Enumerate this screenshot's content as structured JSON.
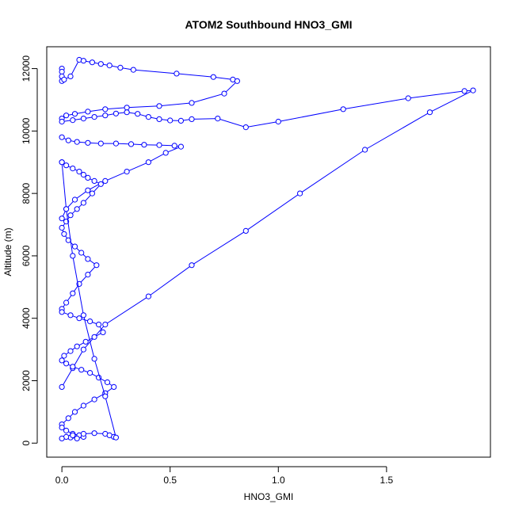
{
  "chart_data": {
    "type": "line",
    "title": "ATOM2 Southbound HNO3_GMI",
    "xlabel": "HNO3_GMI",
    "ylabel": "Altitude (m)",
    "xlim": [
      -0.07,
      1.98
    ],
    "ylim": [
      -450,
      12700
    ],
    "x_ticks": [
      "0.0",
      "0.5",
      "1.0",
      "1.5"
    ],
    "x_tick_values": [
      0,
      0.5,
      1.0,
      1.5
    ],
    "y_ticks": [
      "0",
      "2000",
      "4000",
      "6000",
      "8000",
      "10000",
      "12000"
    ],
    "y_tick_values": [
      0,
      2000,
      4000,
      6000,
      8000,
      10000,
      12000
    ],
    "grid": false,
    "legend": "none",
    "color": "#0000ff",
    "marker": "open-circle",
    "series": [
      {
        "x": [
          0.0,
          0.0,
          0.0,
          0.0,
          0.01,
          0.04,
          0.08,
          0.1,
          0.14,
          0.18,
          0.22,
          0.27,
          0.33,
          0.53,
          0.7,
          0.79,
          0.81,
          0.75,
          0.6,
          0.45,
          0.3,
          0.2,
          0.12,
          0.06,
          0.02,
          0.0
        ],
        "y": [
          12000,
          11900,
          11750,
          11600,
          11650,
          11750,
          12280,
          12250,
          12200,
          12150,
          12100,
          12030,
          11960,
          11840,
          11730,
          11650,
          11600,
          11200,
          10900,
          10800,
          10750,
          10700,
          10620,
          10550,
          10500,
          10400
        ]
      },
      {
        "x": [
          0.0,
          0.05,
          0.1,
          0.15,
          0.2,
          0.25,
          0.3,
          0.35,
          0.4,
          0.45,
          0.5,
          0.55,
          0.6,
          0.72,
          0.85,
          1.0,
          1.3,
          1.6,
          1.86,
          1.9,
          1.7,
          1.4,
          1.1,
          0.85,
          0.6,
          0.4,
          0.2,
          0.1,
          0.05,
          0.0
        ],
        "y": [
          10300,
          10350,
          10400,
          10450,
          10500,
          10560,
          10600,
          10550,
          10450,
          10380,
          10340,
          10330,
          10380,
          10400,
          10120,
          10300,
          10700,
          11050,
          11280,
          11300,
          10600,
          9400,
          8000,
          6800,
          5700,
          4700,
          3800,
          3000,
          2400,
          1800
        ]
      },
      {
        "x": [
          0.0,
          0.03,
          0.07,
          0.12,
          0.18,
          0.25,
          0.32,
          0.38,
          0.45,
          0.52,
          0.55,
          0.48,
          0.4,
          0.3,
          0.2,
          0.12,
          0.06,
          0.02,
          0.0
        ],
        "y": [
          9800,
          9700,
          9650,
          9620,
          9600,
          9600,
          9580,
          9560,
          9550,
          9530,
          9500,
          9300,
          9000,
          8700,
          8400,
          8100,
          7800,
          7500,
          7200
        ]
      },
      {
        "x": [
          0.0,
          0.02,
          0.05,
          0.08,
          0.1,
          0.12,
          0.15,
          0.18,
          0.14,
          0.1,
          0.07,
          0.04,
          0.02,
          0.0,
          0.01,
          0.03,
          0.06,
          0.09,
          0.12,
          0.16,
          0.12,
          0.08,
          0.05,
          0.02,
          0.0
        ],
        "y": [
          9000,
          8900,
          8800,
          8700,
          8600,
          8500,
          8400,
          8300,
          8000,
          7700,
          7500,
          7300,
          7100,
          6900,
          6700,
          6500,
          6300,
          6100,
          5900,
          5700,
          5400,
          5100,
          4800,
          4500,
          4300
        ]
      },
      {
        "x": [
          0.0,
          0.04,
          0.08,
          0.13,
          0.17,
          0.19,
          0.15,
          0.11,
          0.07,
          0.04,
          0.01,
          0.0,
          0.02,
          0.05,
          0.09,
          0.13,
          0.17,
          0.21,
          0.24,
          0.2,
          0.15,
          0.1,
          0.06,
          0.03,
          0.0
        ],
        "y": [
          4200,
          4100,
          4000,
          3900,
          3800,
          3550,
          3400,
          3250,
          3100,
          2950,
          2800,
          2650,
          2550,
          2450,
          2350,
          2250,
          2100,
          1950,
          1800,
          1600,
          1400,
          1200,
          1000,
          800,
          600
        ]
      },
      {
        "x": [
          0.0,
          0.02,
          0.05,
          0.08,
          0.1,
          0.07,
          0.04,
          0.02,
          0.0,
          0.05,
          0.1,
          0.15,
          0.2,
          0.22,
          0.24,
          0.25,
          0.2,
          0.15,
          0.1,
          0.05,
          0.02,
          0.0
        ],
        "y": [
          500,
          400,
          300,
          250,
          200,
          150,
          180,
          200,
          150,
          250,
          300,
          320,
          300,
          250,
          200,
          180,
          1500,
          2700,
          4100,
          6000,
          7500,
          9000
        ]
      }
    ]
  }
}
